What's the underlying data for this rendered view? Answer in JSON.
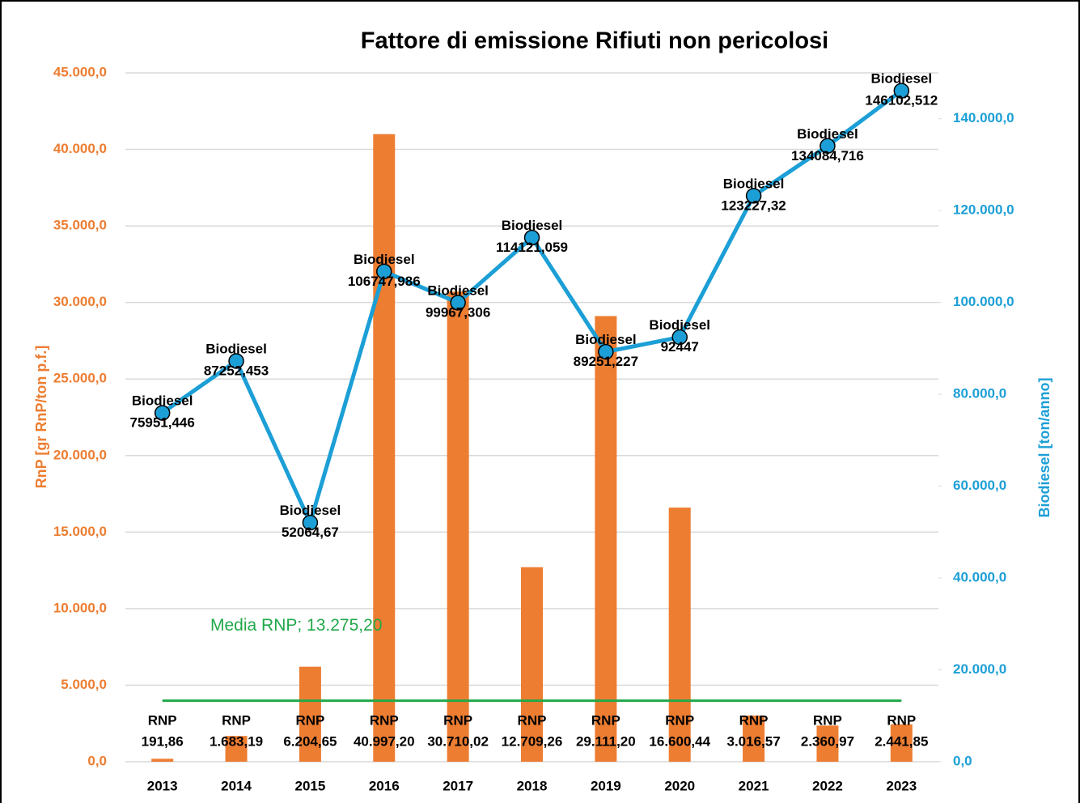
{
  "chart_data": {
    "type": "combo",
    "title": "Fattore di emissione Rifiuti non pericolosi",
    "categories": [
      "2013",
      "2014",
      "2015",
      "2016",
      "2017",
      "2018",
      "2019",
      "2020",
      "2021",
      "2022",
      "2023"
    ],
    "series": [
      {
        "name": "RNP",
        "type": "bar",
        "axis": "y",
        "color": "#ED7D31",
        "values": [
          191.86,
          1683.19,
          6204.65,
          40997.2,
          30710.02,
          12709.26,
          29111.2,
          16600.44,
          3016.57,
          2360.97,
          2441.85
        ],
        "value_labels": [
          "191,86",
          "1.683,19",
          "6.204,65",
          "40.997,20",
          "30.710,02",
          "12.709,26",
          "29.111,20",
          "16.600,44",
          "3.016,57",
          "2.360,97",
          "2.441,85"
        ]
      },
      {
        "name": "Biodiesel",
        "type": "line",
        "axis": "y2",
        "color": "#1C9FD6",
        "values": [
          75951.446,
          87252.453,
          52064.67,
          106747.986,
          99967.306,
          114121.059,
          89251.227,
          92447,
          123227.32,
          134084.716,
          146102.512
        ],
        "value_labels": [
          "75951,446",
          "87252,453",
          "52064,67",
          "106747,986",
          "99967,306",
          "114121,059",
          "89251,227",
          "92447",
          "123227,32",
          "134084,716",
          "146102,512"
        ]
      }
    ],
    "reference_lines": [
      {
        "name": "Media RNP",
        "axis": "y2",
        "value": 13275.2,
        "value_label": "13.275,20",
        "color": "#22A84A"
      }
    ],
    "ylabel": "RnP [gr RnP/ton p.f.]",
    "y2label": "Biodiesel  [ton/anno]",
    "ylim": [
      0,
      45000
    ],
    "yticks": [
      {
        "value": 0,
        "label": "0,0"
      },
      {
        "value": 5000,
        "label": "5.000,0"
      },
      {
        "value": 10000,
        "label": "10.000,0"
      },
      {
        "value": 15000,
        "label": "15.000,0"
      },
      {
        "value": 20000,
        "label": "20.000,0"
      },
      {
        "value": 25000,
        "label": "25.000,0"
      },
      {
        "value": 30000,
        "label": "30.000,0"
      },
      {
        "value": 35000,
        "label": "35.000,0"
      },
      {
        "value": 40000,
        "label": "40.000,0"
      },
      {
        "value": 45000,
        "label": "45.000,0"
      }
    ],
    "y2lim": [
      0,
      150000
    ],
    "y2ticks": [
      {
        "value": 0,
        "label": "0,0"
      },
      {
        "value": 20000,
        "label": "20.000,0"
      },
      {
        "value": 40000,
        "label": "40.000,0"
      },
      {
        "value": 60000,
        "label": "60.000,0"
      },
      {
        "value": 80000,
        "label": "80.000,0"
      },
      {
        "value": 100000,
        "label": "100.000,0"
      },
      {
        "value": 120000,
        "label": "120.000,0"
      },
      {
        "value": 140000,
        "label": "140.000,0"
      }
    ],
    "grid": true
  }
}
